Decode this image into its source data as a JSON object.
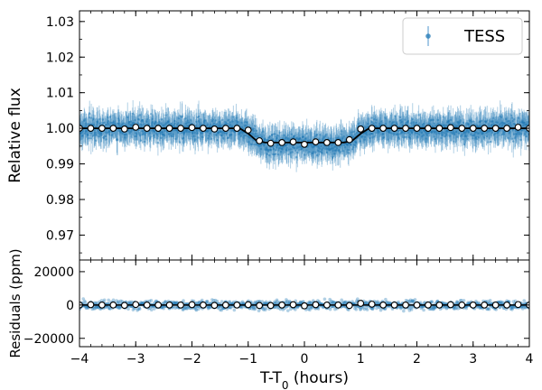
{
  "chart_data": [
    {
      "type": "scatter",
      "panel": "top",
      "ylabel": "Relative flux",
      "xlim": [
        -4,
        4
      ],
      "ylim": [
        0.963,
        1.033
      ],
      "yticks": [
        0.97,
        0.98,
        0.99,
        1.0,
        1.01,
        1.02,
        1.03
      ],
      "ytick_labels": [
        "0.97",
        "0.98",
        "0.99",
        "1.00",
        "1.01",
        "1.02",
        "1.03"
      ],
      "legend": {
        "label": "TESS",
        "position": "top-right"
      },
      "data_color": "#1f77b4",
      "model_color": "#000000",
      "raw_band": {
        "x": [
          -4,
          -1.15,
          -1.0,
          -0.85,
          -0.7,
          0.7,
          0.85,
          1.0,
          1.15,
          4
        ],
        "center": [
          1.0,
          1.0,
          0.999,
          0.997,
          0.9955,
          0.9955,
          0.997,
          0.999,
          1.0,
          1.0
        ],
        "halfwidth": 0.0045
      },
      "model": {
        "x": [
          -4,
          -1.15,
          -1.0,
          -0.85,
          -0.7,
          0.7,
          0.85,
          1.0,
          1.15,
          4
        ],
        "y": [
          1.0,
          1.0,
          0.9985,
          0.9965,
          0.996,
          0.996,
          0.9965,
          0.9985,
          1.0,
          1.0
        ]
      },
      "binned": {
        "x": [
          -4.0,
          -3.8,
          -3.6,
          -3.4,
          -3.2,
          -3.0,
          -2.8,
          -2.6,
          -2.4,
          -2.2,
          -2.0,
          -1.8,
          -1.6,
          -1.4,
          -1.2,
          -1.0,
          -0.8,
          -0.6,
          -0.4,
          -0.2,
          0.0,
          0.2,
          0.4,
          0.6,
          0.8,
          1.0,
          1.2,
          1.4,
          1.6,
          1.8,
          2.0,
          2.2,
          2.4,
          2.6,
          2.8,
          3.0,
          3.2,
          3.4,
          3.6,
          3.8,
          4.0
        ],
        "y": [
          1.0,
          1.0,
          1.0,
          1.0,
          0.9998,
          1.0003,
          1.0,
          1.0,
          1.0,
          1.0,
          1.0002,
          1.0,
          0.9998,
          1.0,
          1.0,
          0.9995,
          0.9965,
          0.9958,
          0.996,
          0.9962,
          0.9955,
          0.9962,
          0.996,
          0.996,
          0.9968,
          0.9998,
          1.0,
          1.0,
          1.0,
          1.0,
          1.0,
          1.0,
          1.0,
          1.0002,
          1.0,
          1.0,
          1.0,
          1.0,
          1.0,
          1.0003,
          1.0
        ]
      }
    },
    {
      "type": "scatter",
      "panel": "bottom",
      "ylabel": "Residuals (ppm)",
      "xlabel_main": "T-T",
      "xlabel_sub": "0",
      "xlabel_tail": " (hours)",
      "xlim": [
        -4,
        4
      ],
      "ylim": [
        -25000,
        27000
      ],
      "xticks": [
        -4,
        -3,
        -2,
        -1,
        0,
        1,
        2,
        3,
        4
      ],
      "xtick_labels": [
        "−4",
        "−3",
        "−2",
        "−1",
        "0",
        "1",
        "2",
        "3",
        "4"
      ],
      "yticks": [
        -20000,
        0,
        20000
      ],
      "ytick_labels": [
        "−20000",
        "0",
        "20000"
      ],
      "residual_halfwidth": 4200,
      "binned": {
        "x": [
          -4.0,
          -3.8,
          -3.6,
          -3.4,
          -3.2,
          -3.0,
          -2.8,
          -2.6,
          -2.4,
          -2.2,
          -2.0,
          -1.8,
          -1.6,
          -1.4,
          -1.2,
          -1.0,
          -0.8,
          -0.6,
          -0.4,
          -0.2,
          0.0,
          0.2,
          0.4,
          0.6,
          0.8,
          1.0,
          1.2,
          1.4,
          1.6,
          1.8,
          2.0,
          2.2,
          2.4,
          2.6,
          2.8,
          3.0,
          3.2,
          3.4,
          3.6,
          3.8,
          4.0
        ],
        "y": [
          0,
          200,
          0,
          0,
          -200,
          300,
          0,
          0,
          0,
          0,
          200,
          0,
          -200,
          0,
          0,
          200,
          -300,
          -300,
          0,
          200,
          -500,
          200,
          0,
          0,
          -300,
          1000,
          500,
          0,
          0,
          0,
          0,
          0,
          0,
          200,
          0,
          0,
          0,
          0,
          0,
          300,
          0
        ]
      }
    }
  ]
}
